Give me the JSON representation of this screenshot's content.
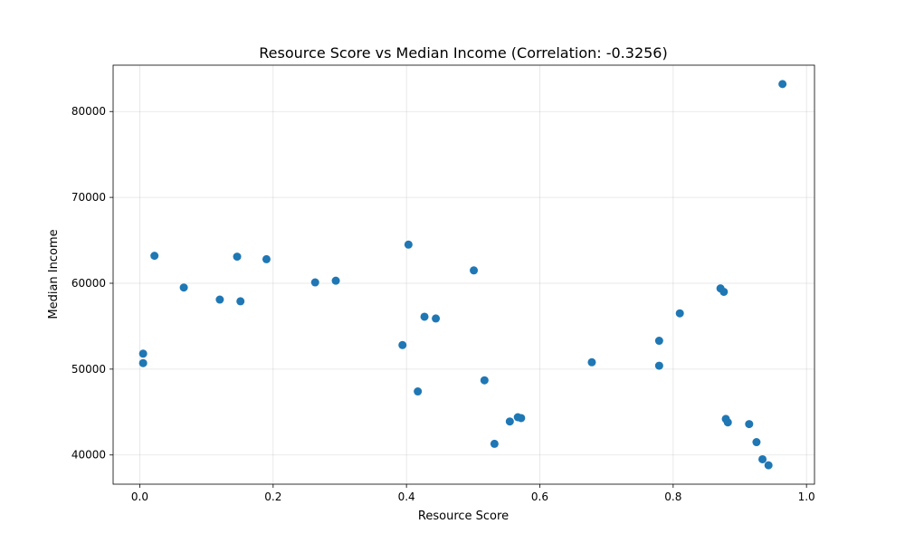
{
  "chart_data": {
    "type": "scatter",
    "title": "Resource Score vs Median Income (Correlation: -0.3256)",
    "xlabel": "Resource Score",
    "ylabel": "Median Income",
    "xlim": [
      -0.04,
      1.012
    ],
    "ylim": [
      36600,
      85400
    ],
    "xticks": [
      0.0,
      0.2,
      0.4,
      0.6,
      0.8,
      1.0
    ],
    "xtick_labels": [
      "0.0",
      "0.2",
      "0.4",
      "0.6",
      "0.8",
      "1.0"
    ],
    "yticks": [
      40000,
      50000,
      60000,
      70000,
      80000
    ],
    "ytick_labels": [
      "40000",
      "50000",
      "60000",
      "70000",
      "80000"
    ],
    "grid": true,
    "color": "#1f77b4",
    "points": [
      {
        "x": 0.005,
        "y": 51800
      },
      {
        "x": 0.005,
        "y": 50700
      },
      {
        "x": 0.022,
        "y": 63200
      },
      {
        "x": 0.066,
        "y": 59500
      },
      {
        "x": 0.12,
        "y": 58100
      },
      {
        "x": 0.146,
        "y": 63100
      },
      {
        "x": 0.151,
        "y": 57900
      },
      {
        "x": 0.19,
        "y": 62800
      },
      {
        "x": 0.263,
        "y": 60100
      },
      {
        "x": 0.294,
        "y": 60300
      },
      {
        "x": 0.394,
        "y": 52800
      },
      {
        "x": 0.403,
        "y": 64500
      },
      {
        "x": 0.417,
        "y": 47400
      },
      {
        "x": 0.427,
        "y": 56100
      },
      {
        "x": 0.444,
        "y": 55900
      },
      {
        "x": 0.501,
        "y": 61500
      },
      {
        "x": 0.517,
        "y": 48700
      },
      {
        "x": 0.532,
        "y": 41300
      },
      {
        "x": 0.555,
        "y": 43900
      },
      {
        "x": 0.567,
        "y": 44400
      },
      {
        "x": 0.572,
        "y": 44300
      },
      {
        "x": 0.678,
        "y": 50800
      },
      {
        "x": 0.779,
        "y": 53300
      },
      {
        "x": 0.779,
        "y": 50400
      },
      {
        "x": 0.81,
        "y": 56500
      },
      {
        "x": 0.871,
        "y": 59400
      },
      {
        "x": 0.876,
        "y": 59000
      },
      {
        "x": 0.879,
        "y": 44200
      },
      {
        "x": 0.882,
        "y": 43800
      },
      {
        "x": 0.914,
        "y": 43600
      },
      {
        "x": 0.925,
        "y": 41500
      },
      {
        "x": 0.934,
        "y": 39500
      },
      {
        "x": 0.943,
        "y": 38800
      },
      {
        "x": 0.964,
        "y": 83200
      }
    ]
  }
}
